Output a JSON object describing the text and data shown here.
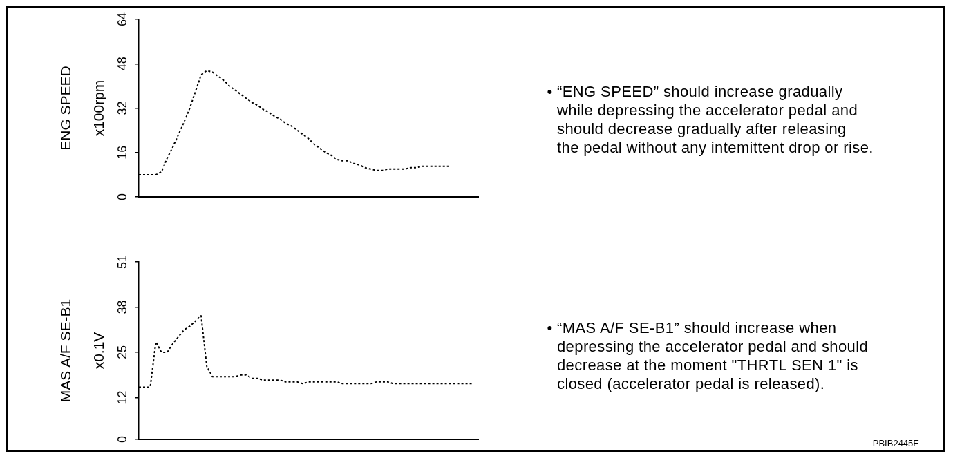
{
  "chart_data": [
    {
      "type": "line",
      "ylabel": "ENG SPEED\nx100rpm",
      "categories": [
        null,
        null,
        null,
        null,
        null,
        null,
        null,
        null,
        null,
        null,
        null,
        null,
        null,
        null,
        null,
        null,
        null,
        null,
        null,
        null,
        null,
        null,
        null,
        null,
        null,
        null,
        null,
        null,
        null,
        null,
        null,
        null,
        null,
        null,
        null,
        null,
        null,
        null,
        null,
        null,
        null,
        null,
        null,
        null,
        null,
        null,
        null,
        null,
        null,
        null,
        null,
        null,
        null,
        null,
        null,
        null,
        null,
        null,
        null,
        null,
        null
      ],
      "series": [
        {
          "color": "#000000",
          "values": [
            8,
            8,
            8,
            8,
            9,
            14,
            18,
            22.5,
            27,
            32,
            38,
            44,
            45.5,
            45,
            43.5,
            42,
            40,
            38.5,
            37,
            35.5,
            34,
            33,
            31.5,
            30.5,
            29,
            28,
            26.5,
            25.5,
            24,
            22.5,
            21,
            19,
            17.5,
            16,
            15,
            13.5,
            13,
            13,
            12,
            11.5,
            10.5,
            10,
            9.5,
            9.5,
            10,
            10,
            10,
            10,
            10.5,
            10.5,
            11,
            11,
            11,
            11,
            11,
            11,
            null,
            null,
            null,
            null,
            null
          ]
        }
      ],
      "ylim": [
        0,
        64
      ],
      "yticks": [
        0,
        16,
        32,
        48,
        64
      ],
      "tick_labels": "y",
      "grid": false,
      "marker": "none",
      "line_style": "dotted",
      "annotations": [
        "• “ENG SPEED” should increase gradually\nwhile depressing the accelerator pedal and\nshould decrease gradually after releasing\nthe pedal without any intemittent drop or rise."
      ]
    },
    {
      "type": "line",
      "ylabel": "MAS A/F SE-B1\nx0.1V",
      "categories": [
        null,
        null,
        null,
        null,
        null,
        null,
        null,
        null,
        null,
        null,
        null,
        null,
        null,
        null,
        null,
        null,
        null,
        null,
        null,
        null,
        null,
        null,
        null,
        null,
        null,
        null,
        null,
        null,
        null,
        null,
        null,
        null,
        null,
        null,
        null,
        null,
        null,
        null,
        null,
        null,
        null,
        null,
        null,
        null,
        null,
        null,
        null,
        null,
        null,
        null,
        null,
        null,
        null,
        null,
        null,
        null,
        null,
        null,
        null,
        null,
        null
      ],
      "series": [
        {
          "color": "#000000",
          "values": [
            15,
            15,
            15,
            28,
            25,
            25,
            27.5,
            29.5,
            31.5,
            32.5,
            34,
            35.5,
            21,
            18,
            18,
            18,
            18,
            18,
            18.5,
            18.5,
            17.5,
            17.5,
            17,
            17,
            17,
            17,
            16.5,
            16.5,
            16.5,
            16,
            16.5,
            16.5,
            16.5,
            16.5,
            16.5,
            16.5,
            16,
            16,
            16,
            16,
            16,
            16,
            16.5,
            16.5,
            16.5,
            16,
            16,
            16,
            16,
            16,
            16,
            16,
            16,
            16,
            16,
            16,
            16,
            16,
            16,
            16,
            null
          ]
        }
      ],
      "ylim": [
        0,
        51
      ],
      "yticks": [
        0,
        12,
        25,
        38,
        51
      ],
      "tick_labels": "y",
      "grid": false,
      "marker": "none",
      "line_style": "dotted",
      "annotations": [
        "• “MAS A/F SE-B1” should increase when\ndepressing the accelerator pedal and should\ndecrease at the moment \"THRTL SEN 1\" is\nclosed (accelerator pedal is released).",
        "PBIB2445E"
      ]
    }
  ]
}
